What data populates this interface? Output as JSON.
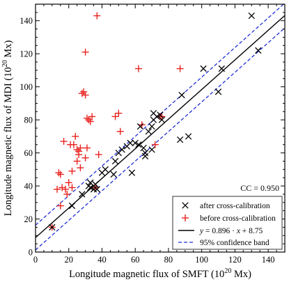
{
  "chart_data": {
    "type": "scatter",
    "xlabel_main": "Longitude magnetic flux of SMFT (10",
    "xlabel_exp": "20",
    "xlabel_end": " Mx)",
    "ylabel_main": "Longitude magnetic flux of MDI (10",
    "ylabel_exp": "20",
    "ylabel_end": " Mx)",
    "xlim": [
      0,
      150
    ],
    "ylim": [
      0,
      150
    ],
    "xticks": [
      "0",
      "20",
      "40",
      "60",
      "80",
      "100",
      "120",
      "140"
    ],
    "yticks": [
      "0",
      "20",
      "40",
      "60",
      "80",
      "100",
      "120",
      "140"
    ],
    "cc_label": "CC = 0.950",
    "fit": {
      "slope": 0.896,
      "intercept": 8.75,
      "band_offset": 7.5
    },
    "colors": {
      "after": "#000000",
      "before": "#e8231f",
      "fit": "#000000",
      "band": "#1f2fd6"
    },
    "series": [
      {
        "name": "after cross-calibration",
        "marker": "x",
        "points": [
          [
            10,
            15
          ],
          [
            22,
            28
          ],
          [
            28,
            35
          ],
          [
            32,
            40
          ],
          [
            33,
            39
          ],
          [
            33,
            42
          ],
          [
            35,
            38
          ],
          [
            36,
            41
          ],
          [
            37,
            38
          ],
          [
            40,
            48
          ],
          [
            42,
            50
          ],
          [
            47,
            47
          ],
          [
            48,
            55
          ],
          [
            50,
            60
          ],
          [
            52,
            62
          ],
          [
            55,
            64
          ],
          [
            57,
            66
          ],
          [
            58,
            48
          ],
          [
            60,
            66
          ],
          [
            62,
            65
          ],
          [
            63,
            76
          ],
          [
            65,
            63
          ],
          [
            66,
            60
          ],
          [
            66,
            58
          ],
          [
            68,
            73
          ],
          [
            70,
            62
          ],
          [
            70,
            76
          ],
          [
            71,
            84
          ],
          [
            71,
            80
          ],
          [
            73,
            82
          ],
          [
            75,
            83
          ],
          [
            76,
            80
          ],
          [
            87,
            68
          ],
          [
            88,
            95
          ],
          [
            92,
            70
          ],
          [
            101,
            111
          ],
          [
            110,
            97
          ],
          [
            112,
            111
          ],
          [
            130,
            143
          ],
          [
            134,
            122
          ]
        ]
      },
      {
        "name": "before cross-calibration",
        "marker": "+",
        "points": [
          [
            10,
            15
          ],
          [
            13,
            38
          ],
          [
            14,
            48
          ],
          [
            15,
            47
          ],
          [
            15,
            28
          ],
          [
            16,
            39
          ],
          [
            17,
            67
          ],
          [
            18,
            38
          ],
          [
            19,
            35
          ],
          [
            20,
            42
          ],
          [
            21,
            65
          ],
          [
            22,
            39
          ],
          [
            22,
            49
          ],
          [
            23,
            65
          ],
          [
            24,
            70
          ],
          [
            25,
            55
          ],
          [
            25,
            62
          ],
          [
            26,
            59
          ],
          [
            26,
            61
          ],
          [
            27,
            63
          ],
          [
            27,
            51
          ],
          [
            28,
            96
          ],
          [
            29,
            97
          ],
          [
            30,
            121
          ],
          [
            30,
            57
          ],
          [
            30,
            95
          ],
          [
            31,
            63
          ],
          [
            31,
            81
          ],
          [
            32,
            80
          ],
          [
            33,
            79
          ],
          [
            34,
            82
          ],
          [
            36,
            39
          ],
          [
            37,
            143
          ],
          [
            38,
            59
          ],
          [
            48,
            82
          ],
          [
            50,
            84
          ],
          [
            51,
            73
          ],
          [
            62,
            111
          ],
          [
            64,
            77
          ],
          [
            72,
            65
          ],
          [
            75,
            82
          ],
          [
            76,
            82
          ],
          [
            87,
            111
          ]
        ]
      }
    ],
    "legend": {
      "after": "after cross-calibration",
      "before": "before cross-calibration",
      "fit_prefix": "y",
      "fit_eq": " = 0.896 · ",
      "fit_x": "x",
      "fit_tail": " + 8.75",
      "band": "95% confidence band"
    }
  }
}
